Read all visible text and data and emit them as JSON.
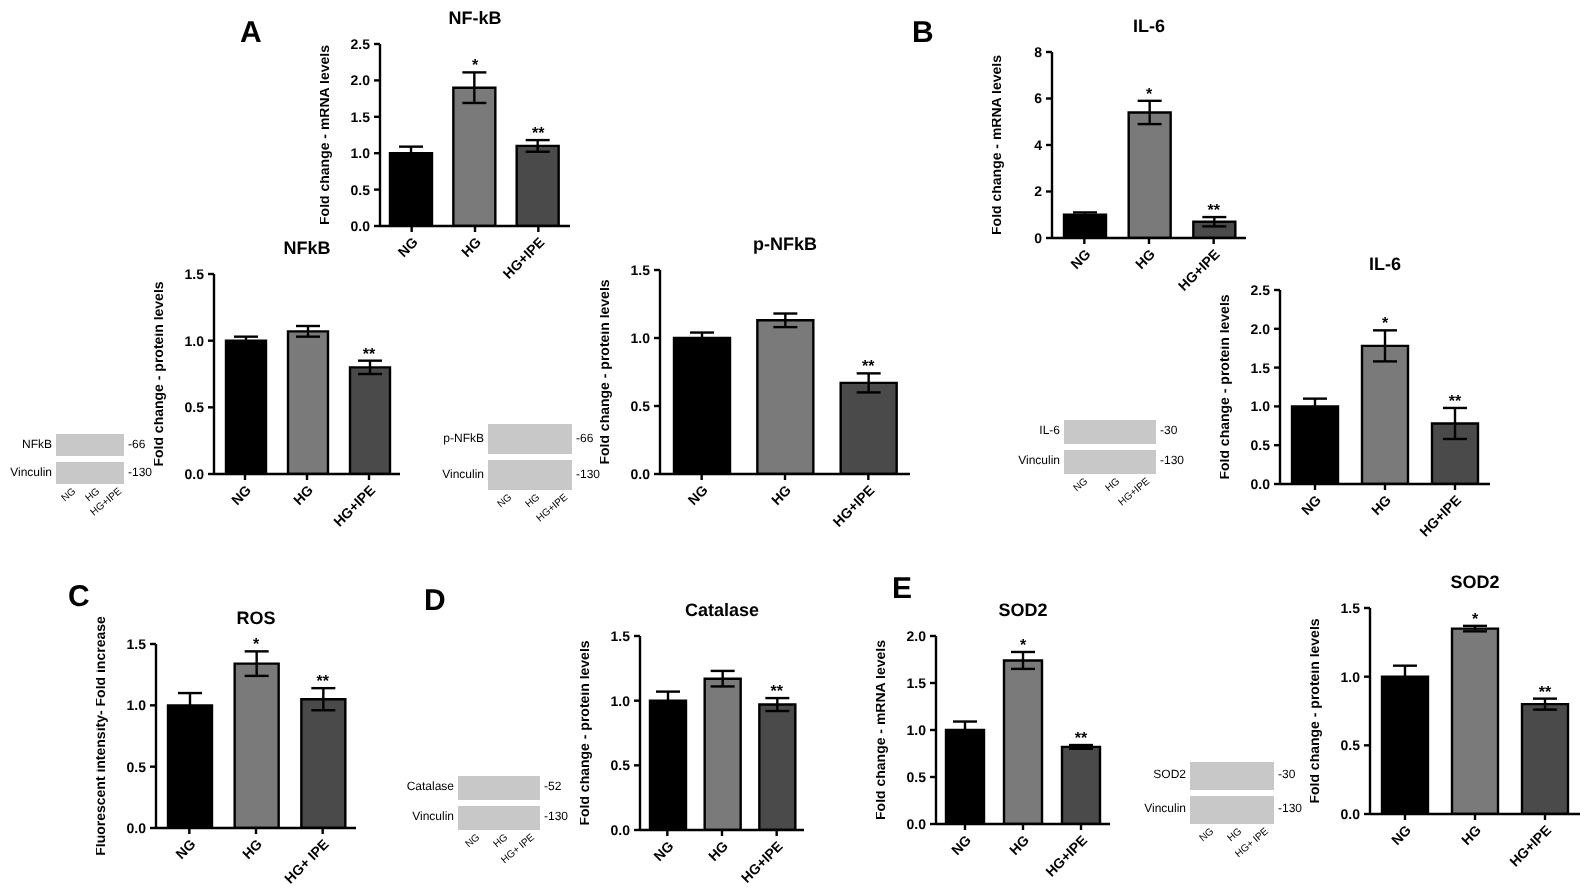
{
  "chart_data": [
    {
      "type": "bar",
      "title": "NF-kB",
      "ylabel": "Fold change - mRNA levels",
      "categories": [
        "NG",
        "HG",
        "HG+IPE"
      ],
      "values": [
        1.0,
        1.9,
        1.1
      ],
      "errors": [
        0.09,
        0.21,
        0.08
      ],
      "colors": [
        "#000000",
        "#7a7a7a",
        "#4a4a4a"
      ],
      "ylim": [
        0,
        2.5
      ],
      "yticks": [
        {
          "value": 0,
          "label": "0.0"
        },
        {
          "value": 0.5,
          "label": "0.5"
        },
        {
          "value": 1,
          "label": "1.0"
        },
        {
          "value": 1.5,
          "label": "1.5"
        },
        {
          "value": 2,
          "label": "2.0"
        },
        {
          "value": 2.5,
          "label": "2.5"
        }
      ],
      "annotations": [
        "A",
        {
          "text": "*",
          "x": "HG",
          "y": 2.11
        },
        {
          "text": "**",
          "x": "HG+IPE",
          "y": 1.18
        }
      ]
    },
    {
      "type": "bar",
      "title": "NFkB",
      "ylabel": "Fold change - protein levels",
      "categories": [
        "NG",
        "HG",
        "HG+IPE"
      ],
      "values": [
        1.0,
        1.07,
        0.8
      ],
      "errors": [
        0.03,
        0.04,
        0.05
      ],
      "colors": [
        "#000000",
        "#7a7a7a",
        "#4a4a4a"
      ],
      "ylim": [
        0,
        1.5
      ],
      "yticks": [
        {
          "value": 0,
          "label": "0.0"
        },
        {
          "value": 0.5,
          "label": "0.5"
        },
        {
          "value": 1,
          "label": "1.0"
        },
        {
          "value": 1.5,
          "label": "1.5"
        }
      ],
      "annotations": [
        "NFkB",
        "Vinculin",
        "-66",
        "-130",
        "NG",
        "HG",
        "HG+IPE",
        {
          "text": "**",
          "x": "HG+IPE",
          "y": 0.85
        }
      ]
    },
    {
      "type": "bar",
      "title": "p-NFkB",
      "ylabel": "Fold change - protein levels",
      "categories": [
        "NG",
        "HG",
        "HG+IPE"
      ],
      "values": [
        1.0,
        1.13,
        0.67
      ],
      "errors": [
        0.04,
        0.05,
        0.07
      ],
      "colors": [
        "#000000",
        "#7a7a7a",
        "#4a4a4a"
      ],
      "ylim": [
        0,
        1.5
      ],
      "yticks": [
        {
          "value": 0,
          "label": "0.0"
        },
        {
          "value": 0.5,
          "label": "0.5"
        },
        {
          "value": 1,
          "label": "1.0"
        },
        {
          "value": 1.5,
          "label": "1.5"
        }
      ],
      "annotations": [
        "p-NFkB",
        "Vinculin",
        "-66",
        "-130",
        "NG",
        "HG",
        "HG+IPE",
        {
          "text": "**",
          "x": "HG+IPE",
          "y": 0.74
        }
      ]
    },
    {
      "type": "bar",
      "title": "IL-6",
      "ylabel": "Fold change - mRNA levels",
      "categories": [
        "NG",
        "HG",
        "HG+IPE"
      ],
      "values": [
        1.0,
        5.4,
        0.7
      ],
      "errors": [
        0.1,
        0.5,
        0.2
      ],
      "colors": [
        "#000000",
        "#7a7a7a",
        "#4a4a4a"
      ],
      "ylim": [
        0,
        8
      ],
      "yticks": [
        0,
        2,
        4,
        6,
        8
      ],
      "annotations": [
        "B",
        {
          "text": "*",
          "x": "HG",
          "y": 5.9
        },
        {
          "text": "**",
          "x": "HG+IPE",
          "y": 0.9
        }
      ]
    },
    {
      "type": "bar",
      "title": "IL-6",
      "ylabel": "Fold change - protein levels",
      "categories": [
        "NG",
        "HG",
        "HG+IPE"
      ],
      "values": [
        1.0,
        1.78,
        0.78
      ],
      "errors": [
        0.1,
        0.2,
        0.2
      ],
      "colors": [
        "#000000",
        "#7a7a7a",
        "#4a4a4a"
      ],
      "ylim": [
        0,
        2.5
      ],
      "yticks": [
        {
          "value": 0,
          "label": "0.0"
        },
        {
          "value": 0.5,
          "label": "0.5"
        },
        {
          "value": 1,
          "label": "1.0"
        },
        {
          "value": 1.5,
          "label": "1.5"
        },
        {
          "value": 2,
          "label": "2.0"
        },
        {
          "value": 2.5,
          "label": "2.5"
        }
      ],
      "annotations": [
        "IL-6",
        "Vinculin",
        "-30",
        "-130",
        "NG",
        "HG",
        "HG+IPE",
        {
          "text": "*",
          "x": "HG",
          "y": 1.98
        },
        {
          "text": "**",
          "x": "HG+IPE",
          "y": 0.98
        }
      ]
    },
    {
      "type": "bar",
      "title": "ROS",
      "ylabel": "Fluorescent intensity- Fold increase",
      "categories": [
        "NG",
        "HG",
        "HG+ IPE"
      ],
      "values": [
        1.0,
        1.34,
        1.05
      ],
      "errors": [
        0.1,
        0.1,
        0.09
      ],
      "colors": [
        "#000000",
        "#7a7a7a",
        "#4a4a4a"
      ],
      "ylim": [
        0,
        1.5
      ],
      "yticks": [
        {
          "value": 0,
          "label": "0.0"
        },
        {
          "value": 0.5,
          "label": "0.5"
        },
        {
          "value": 1,
          "label": "1.0"
        },
        {
          "value": 1.5,
          "label": "1.5"
        }
      ],
      "annotations": [
        "C",
        {
          "text": "*",
          "x": "HG",
          "y": 1.44
        },
        {
          "text": "**",
          "x": "HG+ IPE",
          "y": 1.14
        }
      ]
    },
    {
      "type": "bar",
      "title": "Catalase",
      "ylabel": "Fold change - protein levels",
      "categories": [
        "NG",
        "HG",
        "HG+IPE"
      ],
      "values": [
        1.0,
        1.17,
        0.97
      ],
      "errors": [
        0.07,
        0.06,
        0.05
      ],
      "colors": [
        "#000000",
        "#7a7a7a",
        "#4a4a4a"
      ],
      "ylim": [
        0,
        1.5
      ],
      "yticks": [
        {
          "value": 0,
          "label": "0.0"
        },
        {
          "value": 0.5,
          "label": "0.5"
        },
        {
          "value": 1,
          "label": "1.0"
        },
        {
          "value": 1.5,
          "label": "1.5"
        }
      ],
      "annotations": [
        "D",
        "Catalase",
        "Vinculin",
        "-52",
        "-130",
        "NG",
        "HG",
        "HG+ IPE",
        {
          "text": "**",
          "x": "HG+IPE",
          "y": 1.02
        }
      ]
    },
    {
      "type": "bar",
      "title": "SOD2",
      "ylabel": "Fold change - mRNA levels",
      "categories": [
        "NG",
        "HG",
        "HG+IPE"
      ],
      "values": [
        1.0,
        1.74,
        0.82
      ],
      "errors": [
        0.09,
        0.09,
        0.02
      ],
      "colors": [
        "#000000",
        "#7a7a7a",
        "#4a4a4a"
      ],
      "ylim": [
        0,
        2
      ],
      "yticks": [
        {
          "value": 0,
          "label": "0.0"
        },
        {
          "value": 0.5,
          "label": "0.5"
        },
        {
          "value": 1,
          "label": "1.0"
        },
        {
          "value": 1.5,
          "label": "1.5"
        },
        {
          "value": 2,
          "label": "2.0"
        }
      ],
      "annotations": [
        "E",
        {
          "text": "*",
          "x": "HG",
          "y": 1.83
        },
        {
          "text": "**",
          "x": "HG+IPE",
          "y": 0.84
        }
      ]
    },
    {
      "type": "bar",
      "title": "SOD2",
      "ylabel": "Fold change - protein levels",
      "categories": [
        "NG",
        "HG",
        "HG+IPE"
      ],
      "values": [
        1.0,
        1.35,
        0.8
      ],
      "errors": [
        0.08,
        0.02,
        0.04
      ],
      "colors": [
        "#000000",
        "#7a7a7a",
        "#4a4a4a"
      ],
      "ylim": [
        0,
        1.5
      ],
      "yticks": [
        {
          "value": 0,
          "label": "0.0"
        },
        {
          "value": 0.5,
          "label": "0.5"
        },
        {
          "value": 1,
          "label": "1.0"
        },
        {
          "value": 1.5,
          "label": "1.5"
        }
      ],
      "annotations": [
        "SOD2",
        "Vinculin",
        "-30",
        "-130",
        "NG",
        "HG",
        "HG+ IPE",
        {
          "text": "*",
          "x": "HG",
          "y": 1.37
        },
        {
          "text": "**",
          "x": "HG+IPE",
          "y": 0.84
        }
      ]
    }
  ]
}
